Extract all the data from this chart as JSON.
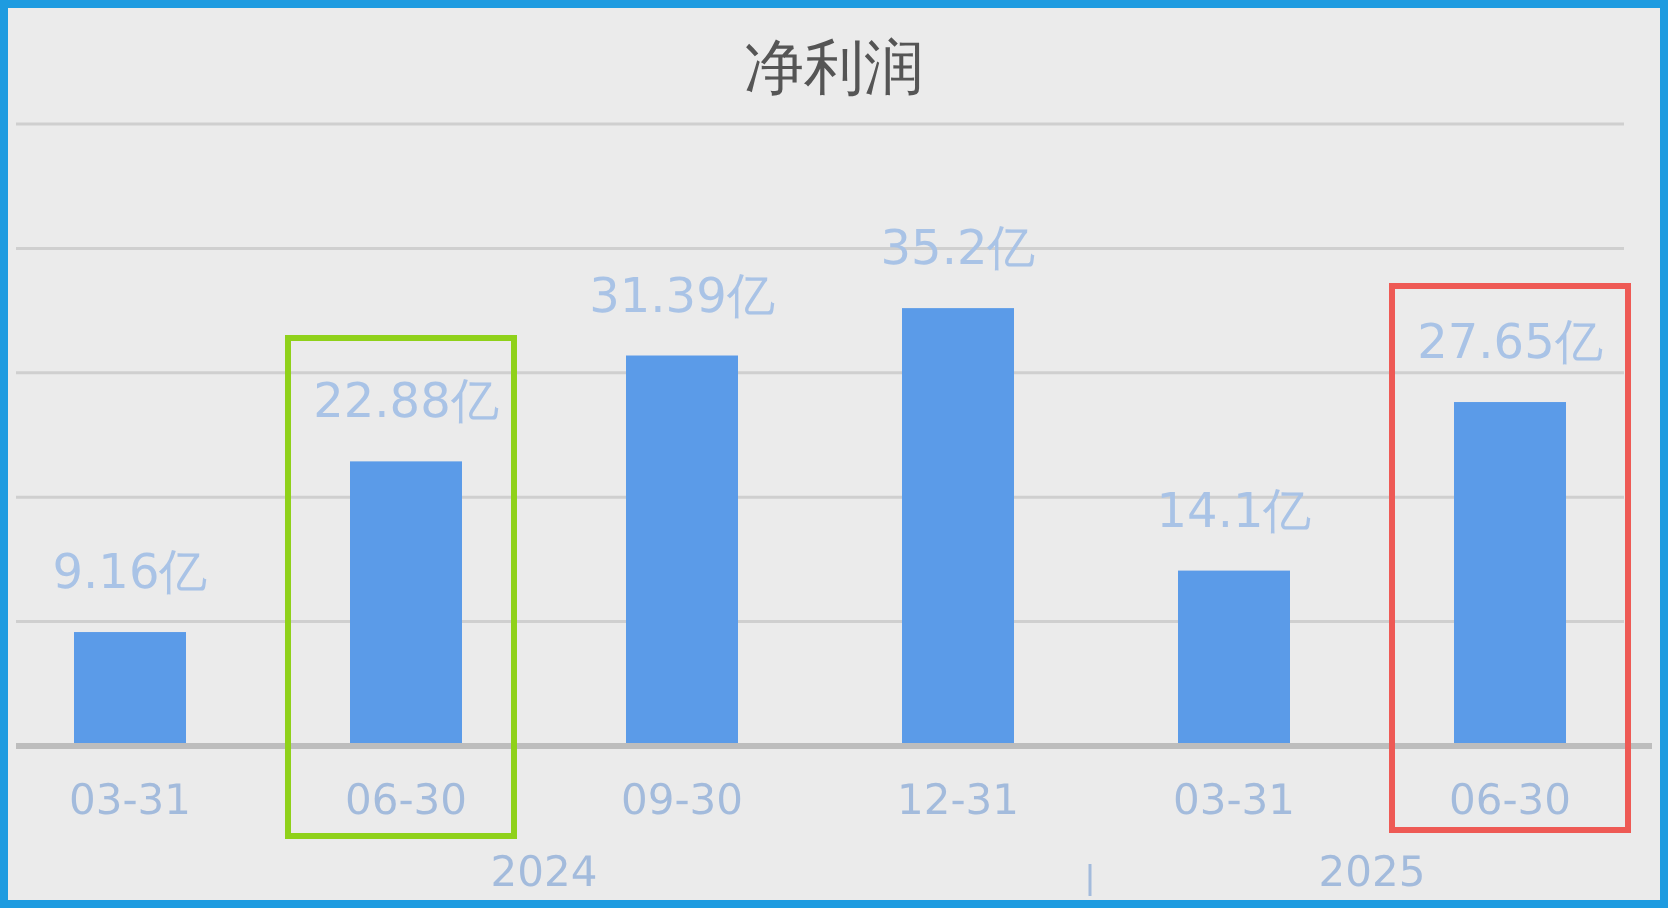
{
  "chart_data": {
    "type": "bar",
    "title": "净利润",
    "categories": [
      "03-31",
      "06-30",
      "09-30",
      "12-31",
      "03-31",
      "06-30"
    ],
    "values": [
      9.16,
      22.88,
      31.39,
      35.2,
      14.1,
      27.65
    ],
    "value_labels": [
      "9.16亿",
      "22.88亿",
      "31.39亿",
      "35.2亿",
      "14.1亿",
      "27.65亿"
    ],
    "color": "#5b9be8",
    "ylim": [
      0,
      50
    ],
    "yticks": [
      {
        "value": 0,
        "label": null
      },
      {
        "value": 10,
        "label": null
      },
      {
        "value": 20,
        "label": null
      },
      {
        "value": 30,
        "label": null
      },
      {
        "value": 40,
        "label": null
      },
      {
        "value": 50,
        "label": null
      }
    ],
    "tick_labels": "x",
    "grid": "y",
    "annotations": [
      "2024",
      "2025"
    ]
  }
}
